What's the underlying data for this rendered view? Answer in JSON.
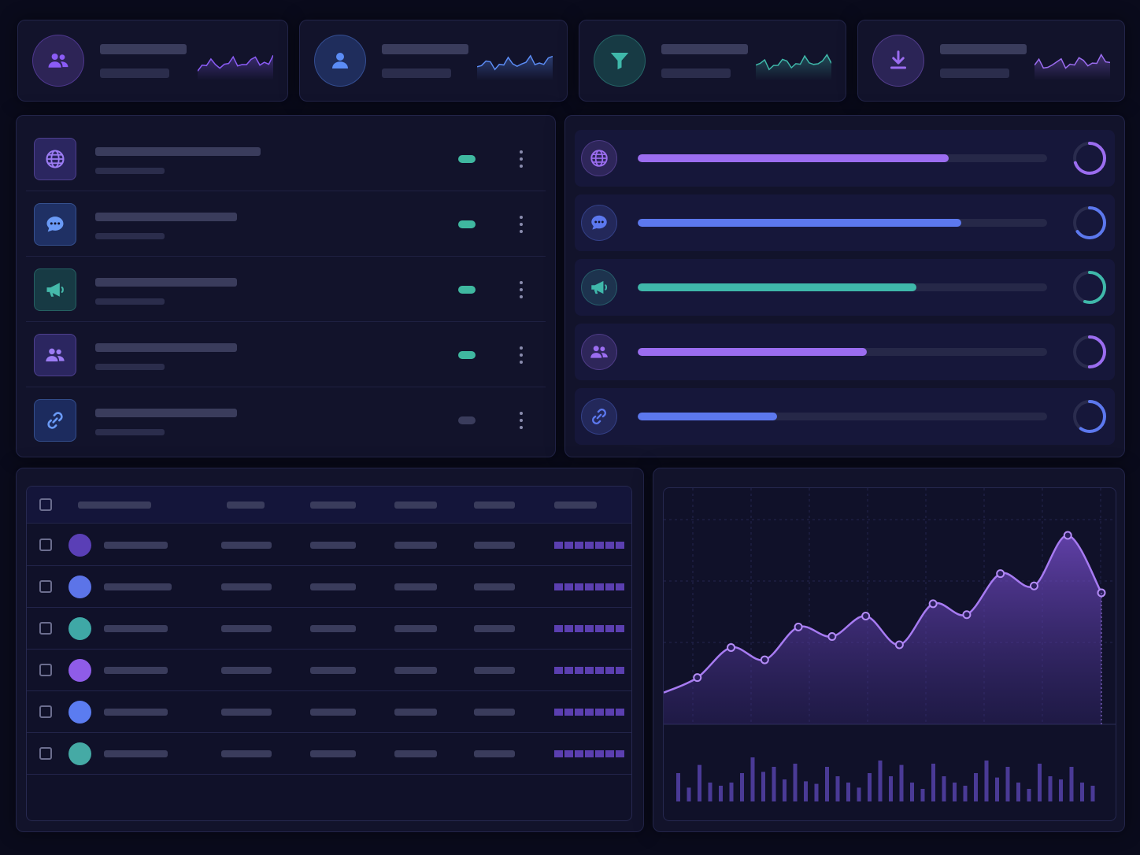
{
  "kpis": [
    {
      "icon": "users-icon",
      "color": "#8b5cf6",
      "bg": "#2d2456"
    },
    {
      "icon": "user-icon",
      "color": "#5b8cf5",
      "bg": "#1f2d5c"
    },
    {
      "icon": "filter-icon",
      "color": "#3fb8aa",
      "bg": "#173a44"
    },
    {
      "icon": "download-icon",
      "color": "#9b6cf0",
      "bg": "#2b2456"
    }
  ],
  "list": [
    {
      "icon": "globe-icon",
      "color": "#9c7cf4",
      "bg": "#2b2660",
      "toggle_on": true
    },
    {
      "icon": "chat-icon",
      "color": "#6a9af6",
      "bg": "#1f3064",
      "toggle_on": true
    },
    {
      "icon": "megaphone-icon",
      "color": "#45b9aa",
      "bg": "#173a44",
      "toggle_on": true
    },
    {
      "icon": "users-icon",
      "color": "#9c7cf4",
      "bg": "#2b2660",
      "toggle_on": true
    },
    {
      "icon": "link-icon",
      "color": "#6a9af6",
      "bg": "#1c2b5e",
      "toggle_on": false
    }
  ],
  "progress": [
    {
      "icon": "globe-icon",
      "color": "#9b6df0",
      "value": 0.76,
      "ring": 0.7
    },
    {
      "icon": "chat-icon",
      "color": "#5c78ee",
      "value": 0.79,
      "ring": 0.65
    },
    {
      "icon": "megaphone-icon",
      "color": "#3fb8aa",
      "value": 0.68,
      "ring": 0.55
    },
    {
      "icon": "users-icon",
      "color": "#9b6df0",
      "value": 0.56,
      "ring": 0.5
    },
    {
      "icon": "link-icon",
      "color": "#5c78ee",
      "value": 0.34,
      "ring": 0.6
    }
  ],
  "table_rows": [
    {
      "avatar_color": "#5a3fb6"
    },
    {
      "avatar_color": "#5c74e8"
    },
    {
      "avatar_color": "#3fa8a6"
    },
    {
      "avatar_color": "#8f5ce8"
    },
    {
      "avatar_color": "#5b7cf0"
    },
    {
      "avatar_color": "#45aaa5"
    }
  ],
  "chart_data": {
    "type": "area",
    "title": "",
    "xlabel": "",
    "ylabel": "",
    "grid": true,
    "x": [
      0,
      1,
      2,
      3,
      4,
      5,
      6,
      7,
      8,
      9,
      10,
      11,
      12,
      13
    ],
    "series": [
      {
        "values": [
          0.22,
          0.33,
          0.55,
          0.46,
          0.7,
          0.63,
          0.78,
          0.57,
          0.87,
          0.79,
          1.09,
          1.0,
          1.37,
          0.95
        ]
      }
    ],
    "bars": [
      0.45,
      0.22,
      0.58,
      0.3,
      0.25,
      0.3,
      0.45,
      0.7,
      0.47,
      0.55,
      0.35,
      0.6,
      0.32,
      0.28,
      0.55,
      0.4,
      0.3,
      0.22,
      0.45,
      0.65,
      0.4,
      0.58,
      0.3,
      0.2,
      0.6,
      0.4,
      0.3,
      0.25,
      0.45,
      0.65,
      0.38,
      0.55,
      0.3,
      0.2,
      0.6,
      0.4,
      0.35,
      0.55,
      0.3,
      0.25
    ],
    "ylim": [
      0,
      1.6
    ]
  }
}
